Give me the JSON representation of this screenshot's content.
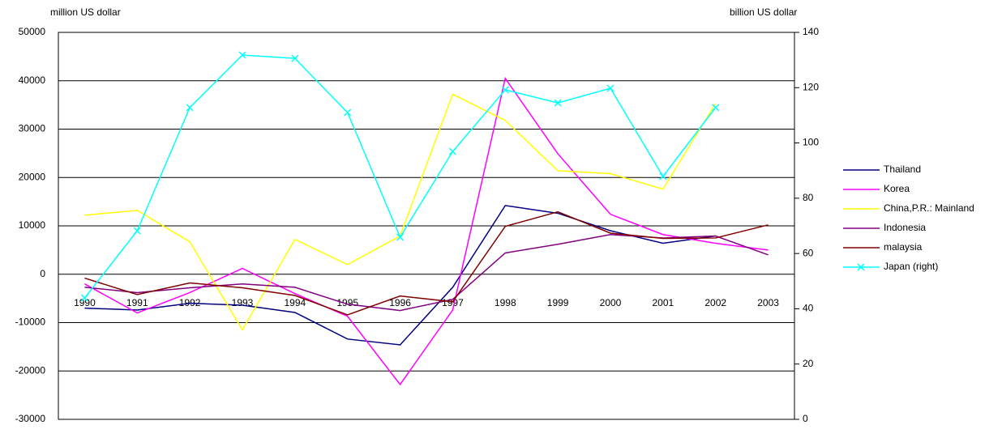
{
  "chart_data": {
    "type": "line",
    "y_axis_label": "million US dollar",
    "y2_axis_label": "billion US dollar",
    "categories": [
      "1990",
      "1991",
      "1992",
      "1993",
      "1994",
      "1995",
      "1996",
      "1997",
      "1998",
      "1999",
      "2000",
      "2001",
      "2002",
      "2003"
    ],
    "ylim": [
      -30000,
      50000
    ],
    "yticks": [
      -30000,
      -20000,
      -10000,
      0,
      10000,
      20000,
      30000,
      40000,
      50000
    ],
    "y2lim": [
      0,
      140
    ],
    "y2ticks": [
      0,
      20,
      40,
      60,
      80,
      100,
      120,
      140
    ],
    "grid": true,
    "legend": "right",
    "series": [
      {
        "name": "Thailand",
        "color": "#000080",
        "values": [
          -7000,
          -7400,
          -6000,
          -6400,
          -7900,
          -13400,
          -14600,
          -2700,
          14200,
          12600,
          9000,
          6400,
          7900,
          null
        ]
      },
      {
        "name": "Korea",
        "color": "#ff00ff",
        "values": [
          -2000,
          -8000,
          -3800,
          1200,
          -4000,
          -8700,
          -22800,
          -7400,
          40500,
          24900,
          12400,
          8200,
          6400,
          5000
        ]
      },
      {
        "name": "China,P.R.: Mainland",
        "color": "#ffff00",
        "values": [
          12200,
          13200,
          6700,
          -11500,
          7200,
          2000,
          7900,
          37200,
          31800,
          21400,
          20800,
          17600,
          35300,
          null
        ]
      },
      {
        "name": "Indonesia",
        "color": "#800080",
        "values": [
          -2700,
          -3800,
          -2800,
          -2000,
          -2700,
          -6200,
          -7500,
          -5200,
          4400,
          6200,
          8200,
          7500,
          7900,
          4000
        ]
      },
      {
        "name": "malaysia",
        "color": "#800000",
        "values": [
          -800,
          -4200,
          -1800,
          -2800,
          -4400,
          -8400,
          -4500,
          -5700,
          9900,
          12900,
          8500,
          7400,
          7500,
          10200
        ]
      },
      {
        "name": "Japan  (right)",
        "color": "#00ffff",
        "axis": "y2",
        "marker": "x",
        "values": [
          43.9,
          68.2,
          112.8,
          131.8,
          130.6,
          111,
          65.9,
          96.9,
          119.2,
          114.5,
          119.8,
          87.9,
          112.8,
          null
        ]
      }
    ]
  }
}
